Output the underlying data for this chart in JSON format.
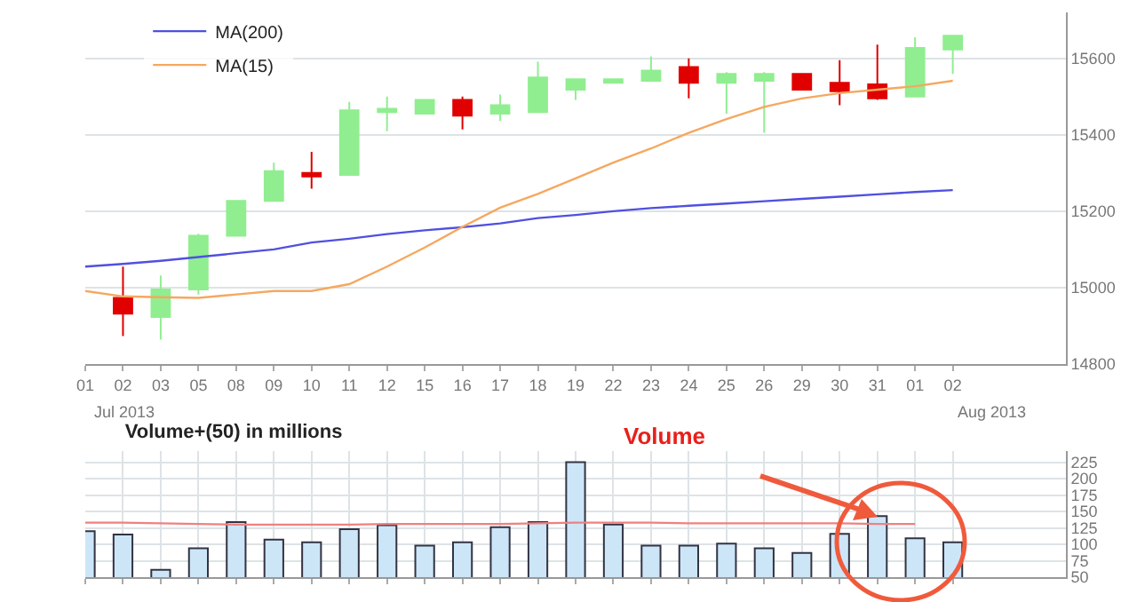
{
  "chart_data": [
    {
      "type": "candlestick",
      "categories": [
        "01",
        "02",
        "03",
        "05",
        "08",
        "09",
        "10",
        "11",
        "12",
        "15",
        "16",
        "17",
        "18",
        "19",
        "22",
        "23",
        "24",
        "25",
        "26",
        "29",
        "30",
        "31",
        "01",
        "02"
      ],
      "ohlc": [
        null,
        [
          14973,
          15055,
          14873,
          14932
        ],
        [
          14923,
          15032,
          14864,
          14995
        ],
        [
          14995,
          15141,
          14982,
          15136
        ],
        [
          15136,
          15227,
          15136,
          15227
        ],
        [
          15227,
          15327,
          15227,
          15305
        ],
        [
          15300,
          15355,
          15259,
          15291
        ],
        [
          15295,
          15486,
          15295,
          15464
        ],
        [
          15459,
          15500,
          15409,
          15468
        ],
        [
          15455,
          15491,
          15455,
          15491
        ],
        [
          15491,
          15500,
          15414,
          15450
        ],
        [
          15455,
          15505,
          15436,
          15477
        ],
        [
          15459,
          15591,
          15459,
          15550
        ],
        [
          15518,
          15545,
          15491,
          15545
        ],
        [
          15536,
          15545,
          15536,
          15545
        ],
        [
          15541,
          15605,
          15541,
          15568
        ],
        [
          15577,
          15600,
          15495,
          15536
        ],
        [
          15536,
          15564,
          15455,
          15559
        ],
        [
          15541,
          15564,
          15405,
          15559
        ],
        [
          15559,
          15559,
          15518,
          15518
        ],
        [
          15536,
          15595,
          15477,
          15514
        ],
        [
          15532,
          15636,
          15491,
          15495
        ],
        [
          15500,
          15655,
          15500,
          15627
        ],
        [
          15623,
          15659,
          15559,
          15659
        ]
      ],
      "colors": [
        null,
        "#e00000",
        "#90ee90",
        "#90ee90",
        "#90ee90",
        "#90ee90",
        "#e00000",
        "#90ee90",
        "#90ee90",
        "#90ee90",
        "#e00000",
        "#90ee90",
        "#90ee90",
        "#90ee90",
        "#90ee90",
        "#90ee90",
        "#e00000",
        "#90ee90",
        "#90ee90",
        "#e00000",
        "#e00000",
        "#e00000",
        "#90ee90",
        "#90ee90"
      ],
      "series": [
        {
          "type": "line",
          "name": "MA(200)",
          "color": "#5050e0",
          "values": [
            15055,
            15062,
            15070,
            15080,
            15090,
            15100,
            15118,
            15128,
            15140,
            15150,
            15158,
            15168,
            15182,
            15190,
            15200,
            15208,
            15214,
            15220,
            15226,
            15232,
            15238,
            15244,
            15250,
            15255
          ]
        },
        {
          "type": "line",
          "name": "MA(15)",
          "color": "#f5a860",
          "values": [
            14991,
            14977,
            14975,
            14973,
            14982,
            14991,
            14991,
            15009,
            15055,
            15105,
            15159,
            15209,
            15245,
            15286,
            15327,
            15364,
            15405,
            15441,
            15473,
            15495,
            15509,
            15518,
            15527,
            15541
          ]
        }
      ],
      "ylim": [
        14800,
        15720
      ],
      "yticks": [
        14800,
        15000,
        15200,
        15400,
        15600
      ],
      "grid": "y",
      "legend": "top left",
      "annotations": [
        "Jul 2013",
        "Aug 2013"
      ]
    },
    {
      "type": "bar",
      "title": "Volume+(50) in millions",
      "categories": [
        null,
        null,
        null,
        null,
        null,
        null,
        null,
        null,
        null,
        null,
        null,
        null,
        null,
        null,
        null,
        null,
        null,
        null,
        null,
        null,
        null,
        null,
        null,
        null
      ],
      "series": [
        {
          "type": "bar",
          "color": "#cce6f8",
          "values": [
            120,
            115,
            61,
            94,
            134,
            107,
            103,
            123,
            129,
            98,
            103,
            126,
            134,
            225,
            130,
            98,
            98,
            101,
            94,
            87,
            116,
            143,
            109,
            103
          ]
        },
        {
          "type": "line",
          "color": "#f08080",
          "values": [
            133,
            133,
            132,
            131,
            130,
            130,
            130,
            130,
            131,
            131,
            131,
            131,
            132,
            133,
            133,
            133,
            132,
            132,
            132,
            132,
            132,
            131,
            131,
            null
          ]
        }
      ],
      "ylim": [
        50,
        242
      ],
      "yticks": [
        50,
        75,
        100,
        125,
        150,
        175,
        200,
        225
      ],
      "grid": true,
      "tick_labels": "y",
      "annotations": [
        "Volume"
      ]
    }
  ]
}
